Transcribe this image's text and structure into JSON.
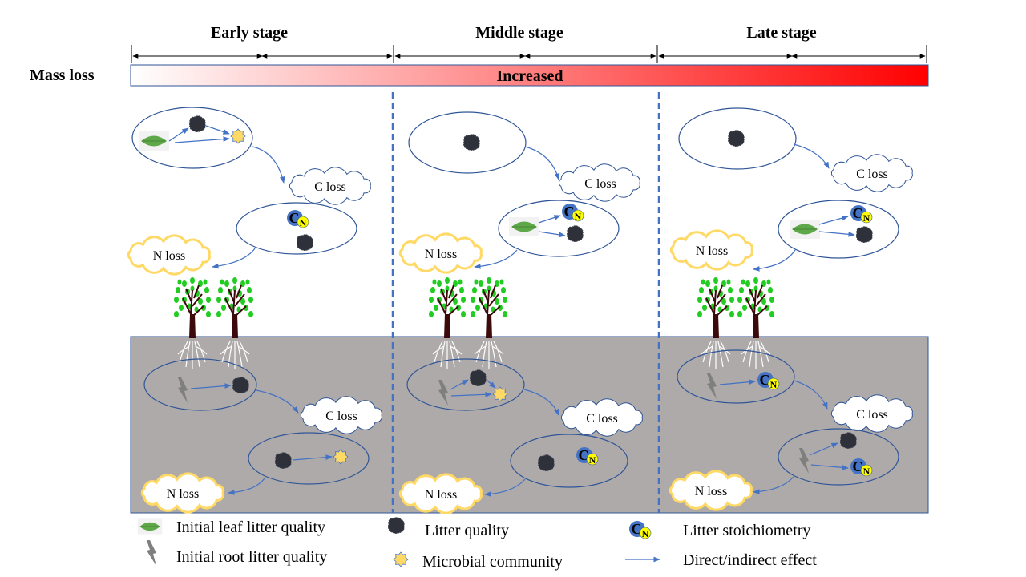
{
  "stages": [
    "Early stage",
    "Middle stage",
    "Late stage"
  ],
  "mass_loss": {
    "label": "Mass loss",
    "bar_text": "Increased",
    "gradient": [
      "#ffffff",
      "#ff0000"
    ]
  },
  "panels": [
    {
      "above_c_loss": "C loss",
      "above_n_loss": "N loss",
      "soil_c_loss": "C loss",
      "soil_n_loss": "N loss"
    },
    {
      "above_c_loss": "C loss",
      "above_n_loss": "N loss",
      "soil_c_loss": "C loss",
      "soil_n_loss": "N loss"
    },
    {
      "above_c_loss": "C loss",
      "above_n_loss": "N loss",
      "soil_c_loss": "C loss",
      "soil_n_loss": "N loss"
    }
  ],
  "cn_symbol": {
    "c": "C",
    "n": "N"
  },
  "legend": {
    "leaf": "Initial leaf litter quality",
    "root": "Initial root litter quality",
    "litter": "Litter quality",
    "microbe": "Microbial community",
    "stoich": "Litter stoichiometry",
    "effect": "Direct/indirect effect"
  },
  "colors": {
    "arrow": "#4472c4",
    "soil": "#aeaaaa",
    "divider": "#4472c4",
    "n_cloud": "#ffd966",
    "stoich_c": "#4472c4",
    "stoich_n": "#ffff00"
  }
}
